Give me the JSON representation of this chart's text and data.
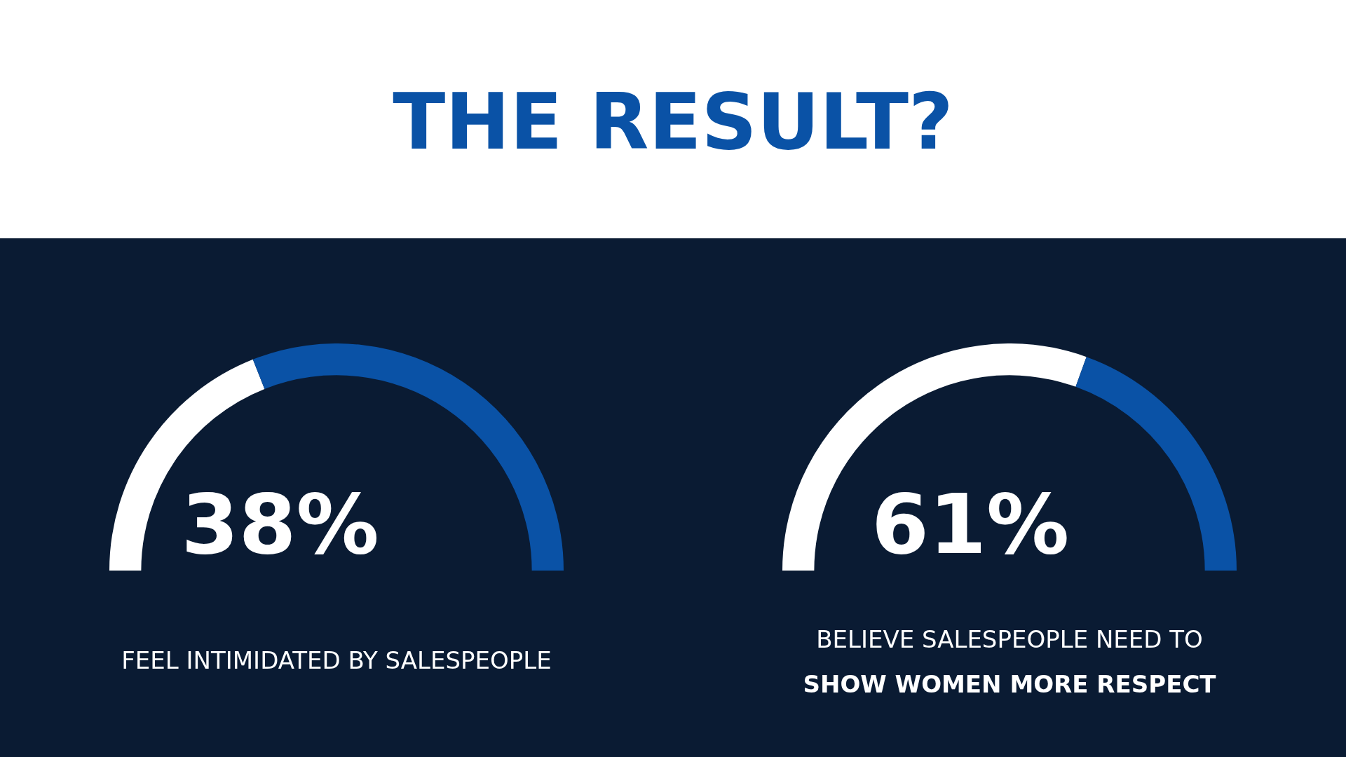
{
  "chart_data": [
    {
      "type": "donut",
      "title": "THE RESULT?",
      "categories": [
        null,
        null
      ],
      "values": [
        38,
        62
      ],
      "colors": [
        "#ffffff",
        "#0a52a6"
      ],
      "value_labels": [
        "38%",
        null
      ],
      "annotations": [
        "FEEL INTIMIDATED BY SALESPEOPLE"
      ]
    },
    {
      "type": "donut",
      "categories": [
        null,
        null
      ],
      "values": [
        61,
        39
      ],
      "colors": [
        "#ffffff",
        "#0a52a6"
      ],
      "value_labels": [
        "61%",
        null
      ],
      "annotations": [
        "BELIEVE SALESPEOPLE NEED TO",
        "SHOW WOMEN MORE RESPECT"
      ]
    }
  ]
}
